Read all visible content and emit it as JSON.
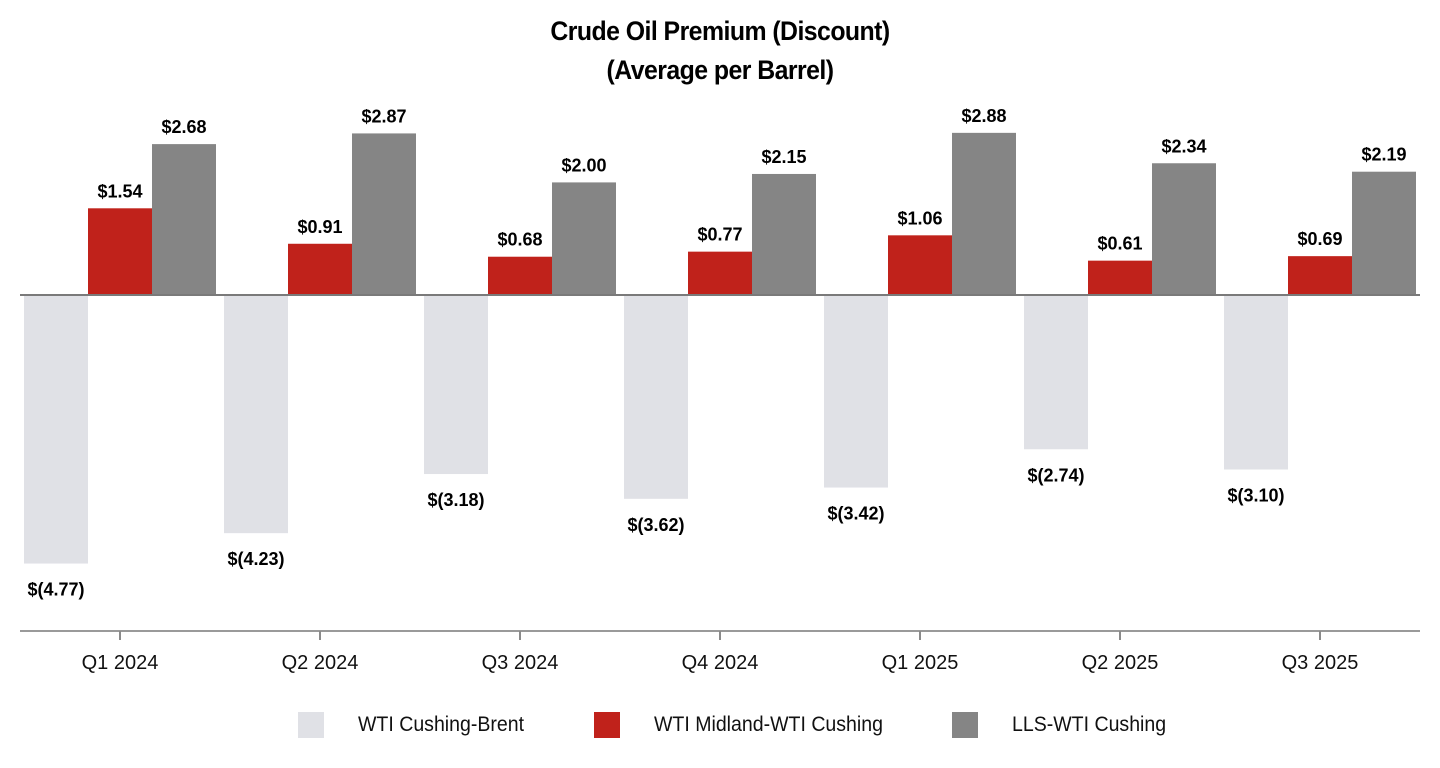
{
  "chart_data": {
    "type": "bar",
    "title": [
      "Crude Oil Premium (Discount)",
      "(Average per Barrel)"
    ],
    "categories": [
      "Q1 2024",
      "Q2 2024",
      "Q3 2024",
      "Q4 2024",
      "Q1 2025",
      "Q2 2025",
      "Q3 2025"
    ],
    "series": [
      {
        "name": "WTI Cushing-Brent",
        "color": "#e0e1e6",
        "values": [
          -4.77,
          -4.23,
          -3.18,
          -3.62,
          -3.42,
          -2.74,
          -3.1
        ],
        "labels": [
          "$(4.77)",
          "$(4.23)",
          "$(3.18)",
          "$(3.62)",
          "$(3.42)",
          "$(2.74)",
          "$(3.10)"
        ]
      },
      {
        "name": "WTI Midland-WTI Cushing",
        "color": "#c0221b",
        "values": [
          1.54,
          0.91,
          0.68,
          0.77,
          1.06,
          0.61,
          0.69
        ],
        "labels": [
          "$1.54",
          "$0.91",
          "$0.68",
          "$0.77",
          "$1.06",
          "$0.61",
          "$0.69"
        ]
      },
      {
        "name": "LLS-WTI Cushing",
        "color": "#858585",
        "values": [
          2.68,
          2.87,
          2.0,
          2.15,
          2.88,
          2.34,
          2.19
        ],
        "labels": [
          "$2.68",
          "$2.87",
          "$2.00",
          "$2.15",
          "$2.88",
          "$2.34",
          "$2.19"
        ]
      }
    ],
    "xlabel": "",
    "ylabel": "",
    "ylim": [
      -6.0,
      3.0
    ],
    "grid": false,
    "legend": "bottom"
  }
}
